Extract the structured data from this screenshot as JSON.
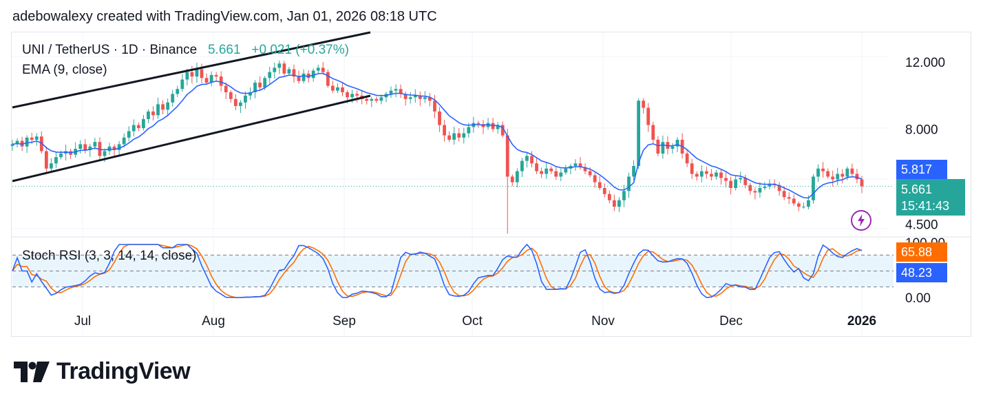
{
  "header": {
    "text": "adebowalexy created with TradingView.com, Jan 01, 2026 08:18 UTC"
  },
  "legend": {
    "symbol": "UNI / TetherUS · 1D · Binance",
    "last": "5.661",
    "change": "+0.021 (+0.37%)",
    "ema_label": "EMA (9, close)",
    "stoch_label": "Stoch RSI (3, 3, 14, 14, close)"
  },
  "price_tags": {
    "ema_value": "5.817",
    "last_price": "5.661",
    "countdown": "15:41:43",
    "stoch_k": "65.88",
    "stoch_d": "48.23"
  },
  "colors": {
    "up": "#26a69a",
    "down": "#ef5350",
    "ema": "#2962ff",
    "stoch_k": "#2962ff",
    "stoch_d": "#ff6d00",
    "channel": "#131722",
    "rsi_band": "#e3f2fd",
    "lightning": "#9c27b0"
  },
  "icons": {
    "alert": "lightning-icon",
    "logo": "tradingview-logo-icon"
  },
  "brand": {
    "name": "TradingView"
  },
  "chart_data": {
    "type": "candlestick",
    "title": "UNI / TetherUS · 1D · Binance",
    "x_ticks": [
      "Jul",
      "Aug",
      "Sep",
      "Oct",
      "Nov",
      "Dec",
      "2026"
    ],
    "y_ticks": [
      "12.000",
      "8.000",
      "4.500"
    ],
    "y_scale": "log",
    "ylim": [
      4.2,
      13.5
    ],
    "stoch_ticks": [
      "100.00",
      "0.00"
    ],
    "stoch_bands": [
      80,
      50,
      20
    ],
    "date_range": [
      "2025-06-13",
      "2026-01-01"
    ],
    "closes": [
      7.3,
      7.45,
      7.2,
      7.6,
      7.5,
      7.65,
      7.0,
      6.3,
      6.5,
      6.75,
      6.9,
      7.0,
      6.85,
      7.1,
      7.3,
      7.05,
      7.2,
      7.4,
      6.8,
      7.0,
      7.2,
      7.05,
      7.3,
      7.6,
      7.9,
      8.2,
      8.05,
      8.5,
      8.9,
      8.7,
      9.3,
      9.0,
      9.4,
      9.9,
      10.2,
      10.8,
      11.3,
      11.0,
      11.5,
      10.9,
      10.6,
      11.1,
      11.0,
      10.4,
      10.0,
      9.6,
      9.2,
      9.4,
      9.8,
      10.0,
      10.6,
      10.3,
      10.9,
      11.3,
      11.6,
      11.9,
      11.2,
      11.5,
      11.0,
      10.7,
      11.2,
      10.9,
      11.4,
      11.6,
      11.3,
      10.4,
      10.1,
      10.3,
      10.0,
      9.7,
      9.9,
      9.8,
      9.6,
      9.5,
      9.6,
      9.5,
      9.7,
      9.9,
      10.1,
      10.2,
      9.9,
      9.6,
      9.7,
      9.8,
      9.6,
      9.7,
      9.5,
      8.9,
      8.2,
      7.7,
      7.5,
      7.8,
      7.6,
      7.8,
      8.1,
      8.3,
      8.25,
      8.1,
      8.3,
      8.0,
      8.2,
      7.7,
      6.0,
      5.8,
      6.2,
      6.6,
      6.8,
      6.5,
      6.2,
      6.1,
      6.3,
      6.2,
      6.0,
      6.15,
      6.3,
      6.4,
      6.5,
      6.35,
      6.2,
      6.05,
      5.8,
      5.6,
      5.4,
      5.2,
      5.0,
      5.2,
      5.5,
      6.0,
      6.4,
      9.5,
      9.1,
      8.2,
      7.5,
      6.9,
      7.4,
      7.1,
      7.2,
      7.5,
      6.9,
      6.5,
      6.1,
      6.0,
      6.2,
      6.1,
      6.0,
      6.15,
      5.95,
      5.85,
      5.6,
      5.9,
      5.95,
      5.7,
      5.5,
      5.45,
      5.6,
      5.65,
      5.75,
      5.7,
      5.5,
      5.3,
      5.25,
      5.1,
      5.0,
      5.0,
      5.2,
      6.0,
      6.3,
      6.2,
      6.0,
      5.9,
      6.1,
      6.0,
      6.3,
      6.1,
      5.9,
      5.66
    ]
  }
}
